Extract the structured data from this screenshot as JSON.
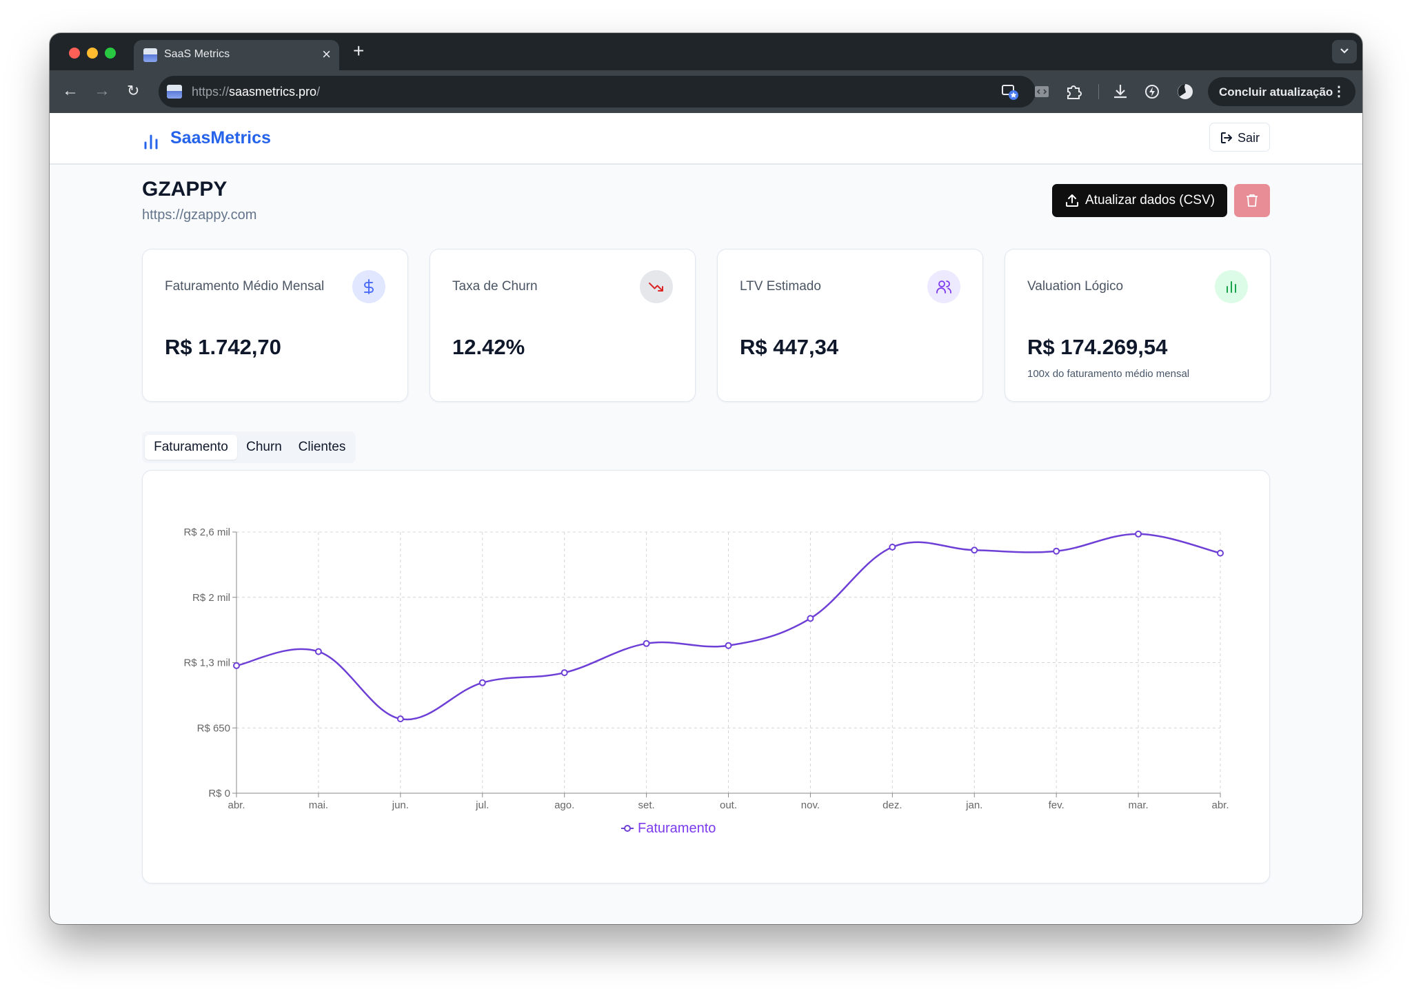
{
  "browser": {
    "tab_title": "SaaS Metrics",
    "url_scheme": "https://",
    "url_host": "saasmetrics.pro",
    "url_path": "/",
    "update_label": "Concluir atualização"
  },
  "header": {
    "brand": "SaasMetrics",
    "logout_label": "Sair"
  },
  "company": {
    "name": "GZAPPY",
    "url": "https://gzappy.com"
  },
  "actions": {
    "upload_csv_label": "Atualizar dados (CSV)"
  },
  "kpis": [
    {
      "label": "Faturamento Médio Mensal",
      "value": "R$ 1.742,70",
      "icon": "dollar-icon",
      "accent": "#4f6ef7"
    },
    {
      "label": "Taxa de Churn",
      "value": "12.42%",
      "icon": "trending-down-icon",
      "accent": "#dc2626"
    },
    {
      "label": "LTV Estimado",
      "value": "R$ 447,34",
      "icon": "users-icon",
      "accent": "#7c3aed"
    },
    {
      "label": "Valuation Lógico",
      "value": "R$ 174.269,54",
      "note": "100x do faturamento médio mensal",
      "icon": "bar-chart-icon",
      "accent": "#16a34a"
    }
  ],
  "tabs": [
    {
      "label": "Faturamento",
      "active": true
    },
    {
      "label": "Churn",
      "active": false
    },
    {
      "label": "Clientes",
      "active": false
    }
  ],
  "chart_data": {
    "type": "line",
    "x": [
      "abr.",
      "mai.",
      "jun.",
      "jul.",
      "ago.",
      "set.",
      "out.",
      "nov.",
      "dez.",
      "jan.",
      "fev.",
      "mar.",
      "abr."
    ],
    "series": [
      {
        "name": "Faturamento",
        "color": "#6d3fd6",
        "values": [
          1270,
          1410,
          740,
          1100,
          1200,
          1490,
          1470,
          1740,
          2450,
          2420,
          2410,
          2580,
          2390
        ]
      }
    ],
    "yticks": [
      0,
      650,
      1300,
      1950,
      2600
    ],
    "ytick_labels": [
      "R$ 0",
      "R$ 650",
      "R$ 1,3 mil",
      "R$ 2 mil",
      "R$ 2,6 mil"
    ],
    "ylim": [
      0,
      2600
    ],
    "grid": true,
    "legend": "bottom"
  }
}
